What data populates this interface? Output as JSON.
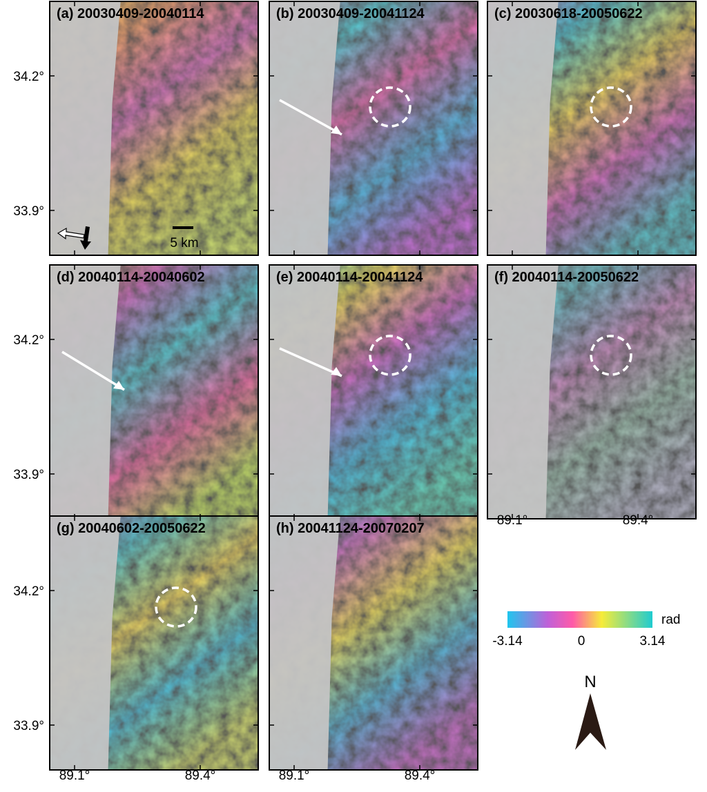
{
  "panels": [
    {
      "label": "(a) 20030409-20040114"
    },
    {
      "label": "(b) 20030409-20041124"
    },
    {
      "label": "(c) 20030618-20050622"
    },
    {
      "label": "(d) 20040114-20040602"
    },
    {
      "label": "(e) 20040114-20041124"
    },
    {
      "label": "(f) 20040114-20050622"
    },
    {
      "label": "(g) 20040602-20050622"
    },
    {
      "label": "(h) 20041124-20070207"
    }
  ],
  "axes": {
    "lat_labels": [
      "34.2°",
      "33.9°"
    ],
    "lon_labels": [
      "89.1°",
      "89.4°"
    ]
  },
  "scale_bar": "5 km",
  "colorbar": {
    "min_label": "-3.14",
    "mid_label": "0",
    "max_label": "3.14",
    "unit": "rad"
  },
  "north": "N"
}
